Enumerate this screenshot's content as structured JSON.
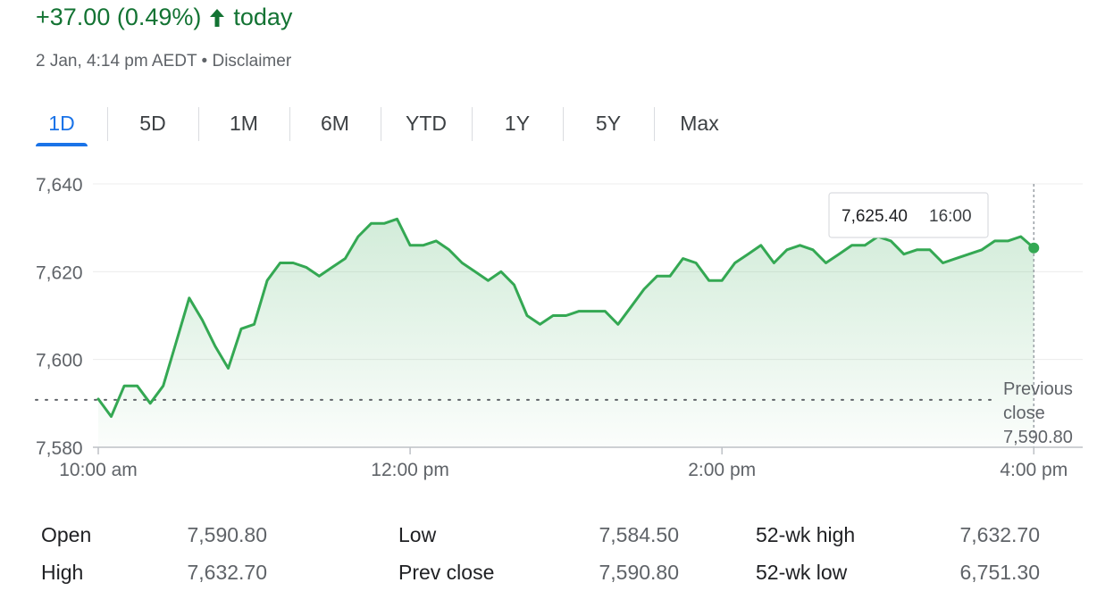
{
  "header": {
    "change_text": "+37.00 (0.49%)",
    "change_suffix": "today",
    "change_color": "#137333",
    "arrow_icon": "arrow-up-icon",
    "timestamp": "2 Jan, 4:14 pm AEDT",
    "separator": "•",
    "disclaimer": "Disclaimer"
  },
  "tabs": [
    {
      "label": "1D",
      "active": true
    },
    {
      "label": "5D",
      "active": false
    },
    {
      "label": "1M",
      "active": false
    },
    {
      "label": "6M",
      "active": false
    },
    {
      "label": "YTD",
      "active": false
    },
    {
      "label": "1Y",
      "active": false
    },
    {
      "label": "5Y",
      "active": false
    },
    {
      "label": "Max",
      "active": false
    }
  ],
  "tooltip": {
    "value": "7,625.40",
    "time": "16:00"
  },
  "previous_close": {
    "line1": "Previous",
    "line2": "close",
    "value": "7,590.80"
  },
  "chart_data": {
    "type": "area",
    "title": "",
    "xlabel": "",
    "ylabel": "",
    "ylim": [
      7580,
      7640
    ],
    "yticks": [
      7580,
      7600,
      7620,
      7640
    ],
    "ytick_labels": [
      "7,580",
      "7,600",
      "7,620",
      "7,640"
    ],
    "xlim": [
      "10:00",
      "16:14"
    ],
    "xticks": [
      "10:00",
      "12:00",
      "14:00",
      "16:00"
    ],
    "xtick_labels": [
      "10:00 am",
      "12:00 pm",
      "2:00 pm",
      "4:00 pm"
    ],
    "grid": true,
    "previous_close": 7590.8,
    "line_color": "#34a853",
    "series": [
      {
        "x": [
          "10:00",
          "10:05",
          "10:10",
          "10:15",
          "10:20",
          "10:25",
          "10:30",
          "10:35",
          "10:40",
          "10:45",
          "10:50",
          "10:55",
          "11:00",
          "11:05",
          "11:10",
          "11:15",
          "11:20",
          "11:25",
          "11:30",
          "11:35",
          "11:40",
          "11:45",
          "11:50",
          "11:55",
          "12:00",
          "12:05",
          "12:10",
          "12:15",
          "12:20",
          "12:25",
          "12:30",
          "12:35",
          "12:40",
          "12:45",
          "12:50",
          "12:55",
          "13:00",
          "13:05",
          "13:10",
          "13:15",
          "13:20",
          "13:25",
          "13:30",
          "13:35",
          "13:40",
          "13:45",
          "13:50",
          "13:55",
          "14:00",
          "14:05",
          "14:10",
          "14:15",
          "14:20",
          "14:25",
          "14:30",
          "14:35",
          "14:40",
          "14:45",
          "14:50",
          "14:55",
          "15:00",
          "15:05",
          "15:10",
          "15:15",
          "15:20",
          "15:25",
          "15:30",
          "15:35",
          "15:40",
          "15:45",
          "15:50",
          "15:55",
          "16:00"
        ],
        "values": [
          7591,
          7587,
          7594,
          7594,
          7590,
          7594,
          7604,
          7614,
          7609,
          7603,
          7598,
          7607,
          7608,
          7618,
          7622,
          7622,
          7621,
          7619,
          7621,
          7623,
          7628,
          7631,
          7631,
          7632,
          7626,
          7626,
          7627,
          7625,
          7622,
          7620,
          7618,
          7620,
          7617,
          7610,
          7608,
          7610,
          7610,
          7611,
          7611,
          7611,
          7608,
          7612,
          7616,
          7619,
          7619,
          7623,
          7622,
          7618,
          7618,
          7622,
          7624,
          7626,
          7622,
          7625,
          7626,
          7625,
          7622,
          7624,
          7626,
          7626,
          7628,
          7627,
          7624,
          7625,
          7625,
          7622,
          7623,
          7624,
          7625,
          7627,
          7627,
          7628,
          7625.4
        ]
      }
    ]
  },
  "stats": [
    {
      "label": "Open",
      "value": "7,590.80"
    },
    {
      "label": "High",
      "value": "7,632.70"
    },
    {
      "label": "Low",
      "value": "7,584.50"
    },
    {
      "label": "Prev close",
      "value": "7,590.80"
    },
    {
      "label": "52-wk high",
      "value": "7,632.70"
    },
    {
      "label": "52-wk low",
      "value": "6,751.30"
    }
  ]
}
